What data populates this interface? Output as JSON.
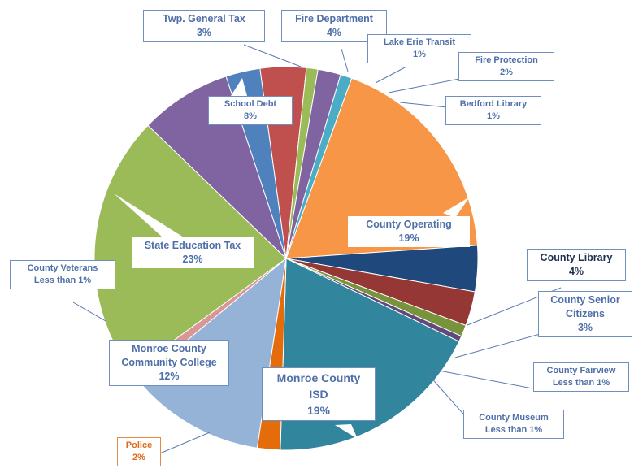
{
  "chart_data": {
    "type": "pie",
    "slices": [
      {
        "label": "County Operating",
        "value_text": "19%",
        "value": 19,
        "color": "#f79646"
      },
      {
        "label": "County Library",
        "value_text": "4%",
        "value": 4,
        "color": "#1f497d"
      },
      {
        "label": "County Senior Citizens",
        "value_text": "3%",
        "value": 3,
        "color": "#953735"
      },
      {
        "label": "County Fairview",
        "value_text": "Less than 1%",
        "value": 1,
        "color": "#77933c"
      },
      {
        "label": "County Museum",
        "value_text": "Less than 1%",
        "value": 0.5,
        "color": "#604a7b"
      },
      {
        "label": "Monroe County ISD",
        "value_text": "19%",
        "value": 19,
        "color": "#31859c"
      },
      {
        "label": "Police",
        "value_text": "2%",
        "value": 2,
        "color": "#e46c0a"
      },
      {
        "label": "Monroe County Community College",
        "value_text": "12%",
        "value": 12,
        "color": "#95b3d7"
      },
      {
        "label": "County Veterans",
        "value_text": "Less than 1%",
        "value": 1,
        "color": "#d99694"
      },
      {
        "label": "State Education Tax",
        "value_text": "23%",
        "value": 23,
        "color": "#9bbb59"
      },
      {
        "label": "School Debt",
        "value_text": "8%",
        "value": 8,
        "color": "#8064a2"
      },
      {
        "label": "Twp. General Tax",
        "value_text": "3%",
        "value": 3,
        "color": "#4f81bd"
      },
      {
        "label": "Fire Department",
        "value_text": "4%",
        "value": 4,
        "color": "#c0504d"
      },
      {
        "label": "Lake Erie Transit",
        "value_text": "1%",
        "value": 1,
        "color": "#9bbb59"
      },
      {
        "label": "Fire Protection",
        "value_text": "2%",
        "value": 2,
        "color": "#8064a2"
      },
      {
        "label": "Bedford Library",
        "value_text": "1%",
        "value": 1,
        "color": "#4bacc6"
      }
    ]
  },
  "labels": {
    "twp": {
      "name": "Twp. General Tax",
      "pct": "3%"
    },
    "fire_dept": {
      "name": "Fire Department",
      "pct": "4%"
    },
    "lake_erie": {
      "name": "Lake Erie Transit",
      "pct": "1%"
    },
    "fire_prot": {
      "name": "Fire Protection",
      "pct": "2%"
    },
    "bedford": {
      "name": "Bedford Library",
      "pct": "1%"
    },
    "school_debt": {
      "name": "School Debt",
      "pct": "8%"
    },
    "county_op": {
      "name": "County Operating",
      "pct": "19%"
    },
    "state_ed": {
      "name": "State Education Tax",
      "pct": "23%"
    },
    "county_lib": {
      "name": "County Library",
      "pct": "4%"
    },
    "veterans": {
      "name1": "County Veterans",
      "name2": "Less than 1%"
    },
    "senior": {
      "name1": "County Senior",
      "name2": "Citizens",
      "pct": "3%"
    },
    "college": {
      "name1": "Monroe County",
      "name2": "Community College",
      "pct": "12%"
    },
    "fairview": {
      "name1": "County Fairview",
      "name2": "Less than 1%"
    },
    "isd": {
      "name1": "Monroe County",
      "name2": "ISD",
      "pct": "19%"
    },
    "museum": {
      "name1": "County Museum",
      "name2": "Less than 1%"
    },
    "police": {
      "name": "Police",
      "pct": "2%"
    }
  }
}
